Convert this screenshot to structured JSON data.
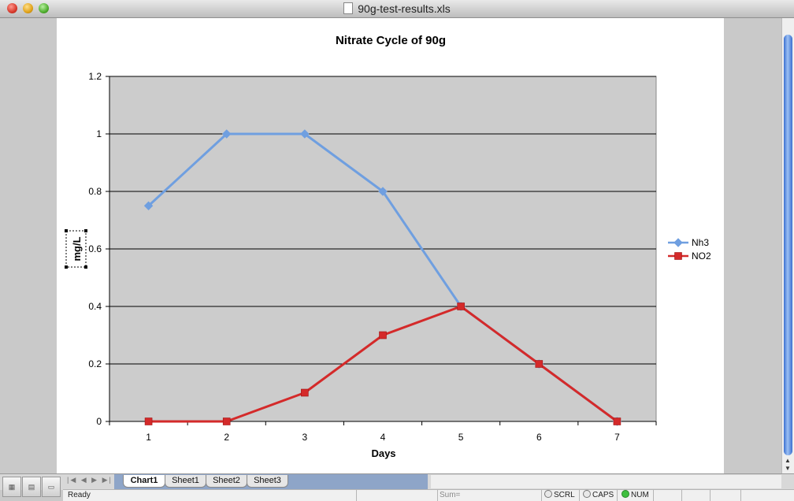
{
  "window": {
    "title": "90g-test-results.xls"
  },
  "chart_data": {
    "type": "line",
    "title": "Nitrate Cycle of 90g",
    "xlabel": "Days",
    "ylabel": "mg/L",
    "categories": [
      "1",
      "2",
      "3",
      "4",
      "5",
      "6",
      "7"
    ],
    "ylim": [
      0,
      1.2
    ],
    "yticks": [
      "0",
      "0.2",
      "0.4",
      "0.6",
      "0.8",
      "1",
      "1.2"
    ],
    "grid": true,
    "legend_position": "right",
    "series": [
      {
        "name": "Nh3",
        "values": [
          0.75,
          1,
          1,
          0.8,
          0.4,
          0.2,
          0
        ],
        "color": "#6f9fe0",
        "marker": "diamond"
      },
      {
        "name": "NO2",
        "values": [
          0,
          0,
          0.1,
          0.3,
          0.4,
          0.2,
          0
        ],
        "color": "#d42a2a",
        "marker": "square"
      }
    ]
  },
  "sheet_tabs": [
    "Chart1",
    "Sheet1",
    "Sheet2",
    "Sheet3"
  ],
  "active_tab": "Chart1",
  "status": {
    "ready": "Ready",
    "sum": "Sum=",
    "scrl": "SCRL",
    "caps": "CAPS",
    "num": "NUM"
  }
}
